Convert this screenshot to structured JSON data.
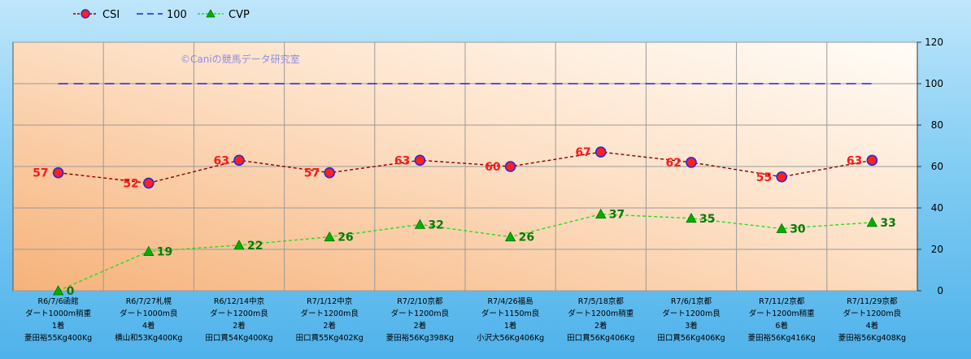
{
  "chart_data": {
    "type": "line",
    "categories": [
      [
        "R6/7/6函館",
        "ダート1000m稍重",
        "1着",
        "菱田裕55Kg400Kg"
      ],
      [
        "R6/7/27札幌",
        "ダート1000m良",
        "4着",
        "横山和53Kg400Kg"
      ],
      [
        "R6/12/14中京",
        "ダート1200m良",
        "2着",
        "田口貫54Kg400Kg"
      ],
      [
        "R7/1/12中京",
        "ダート1200m良",
        "2着",
        "田口貫55Kg402Kg"
      ],
      [
        "R7/2/10京都",
        "ダート1200m良",
        "2着",
        "菱田裕56Kg398Kg"
      ],
      [
        "R7/4/26福島",
        "ダート1150m良",
        "1着",
        "小沢大56Kg406Kg"
      ],
      [
        "R7/5/18京都",
        "ダート1200m稍重",
        "2着",
        "田口貫56Kg406Kg"
      ],
      [
        "R7/6/1京都",
        "ダート1200m良",
        "3着",
        "田口貫56Kg406Kg"
      ],
      [
        "R7/11/2京都",
        "ダート1200m稍重",
        "6着",
        "菱田裕56Kg416Kg"
      ],
      [
        "R7/11/29京都",
        "ダート1200m良",
        "4着",
        "菱田裕56Kg408Kg"
      ]
    ],
    "series": [
      {
        "name": "CSI",
        "values": [
          57,
          52,
          63,
          57,
          63,
          60,
          67,
          62,
          55,
          63
        ],
        "color": "#8b0000",
        "marker": "#ff2020"
      },
      {
        "name": "100",
        "values": [
          100,
          100,
          100,
          100,
          100,
          100,
          100,
          100,
          100,
          100
        ],
        "color": "#1e1ee6"
      },
      {
        "name": "CVP",
        "values": [
          0,
          19,
          22,
          26,
          32,
          26,
          37,
          35,
          30,
          33
        ],
        "color": "#22e022",
        "marker": "#00b000"
      }
    ],
    "y_ticks": [
      "0",
      "20",
      "40",
      "60",
      "80",
      "100",
      "120"
    ],
    "ylim": [
      0,
      120
    ],
    "y_axis_side": "right",
    "grid": true,
    "legend_position": "top-left",
    "watermark": "©Caniの競馬データ研究室"
  }
}
